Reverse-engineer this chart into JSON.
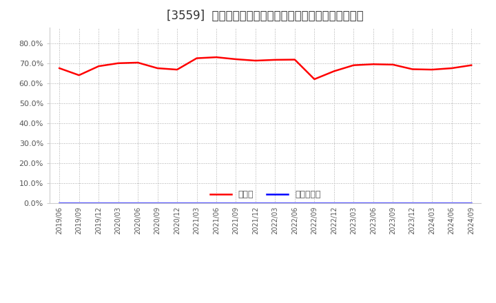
{
  "title": "[3559]  現預金、有利子負債の総資産に対する比率の推移",
  "cash_dates": [
    "2019/06",
    "2019/09",
    "2019/12",
    "2020/03",
    "2020/06",
    "2020/09",
    "2020/12",
    "2021/03",
    "2021/06",
    "2021/09",
    "2021/12",
    "2022/03",
    "2022/06",
    "2022/09",
    "2022/12",
    "2023/03",
    "2023/06",
    "2023/09",
    "2023/12",
    "2024/03",
    "2024/06",
    "2024/09"
  ],
  "cash_values": [
    0.675,
    0.64,
    0.685,
    0.7,
    0.703,
    0.675,
    0.668,
    0.725,
    0.73,
    0.72,
    0.713,
    0.717,
    0.718,
    0.62,
    0.66,
    0.69,
    0.695,
    0.693,
    0.67,
    0.668,
    0.675,
    0.69
  ],
  "debt_values": [
    0.0,
    0.0,
    0.0,
    0.0,
    0.0,
    0.0,
    0.0,
    0.0,
    0.0,
    0.0,
    0.0,
    0.0,
    0.0,
    0.0,
    0.0,
    0.0,
    0.0,
    0.0,
    0.0,
    0.0,
    0.0,
    0.0
  ],
  "cash_color": "#FF0000",
  "debt_color": "#0000FF",
  "cash_label": "現預金",
  "debt_label": "有利子負債",
  "ylim": [
    0.0,
    0.88
  ],
  "yticks": [
    0.0,
    0.1,
    0.2,
    0.3,
    0.4,
    0.5,
    0.6,
    0.7,
    0.8
  ],
  "background_color": "#ffffff",
  "grid_color": "#aaaaaa",
  "title_fontsize": 12,
  "line_width": 1.8
}
